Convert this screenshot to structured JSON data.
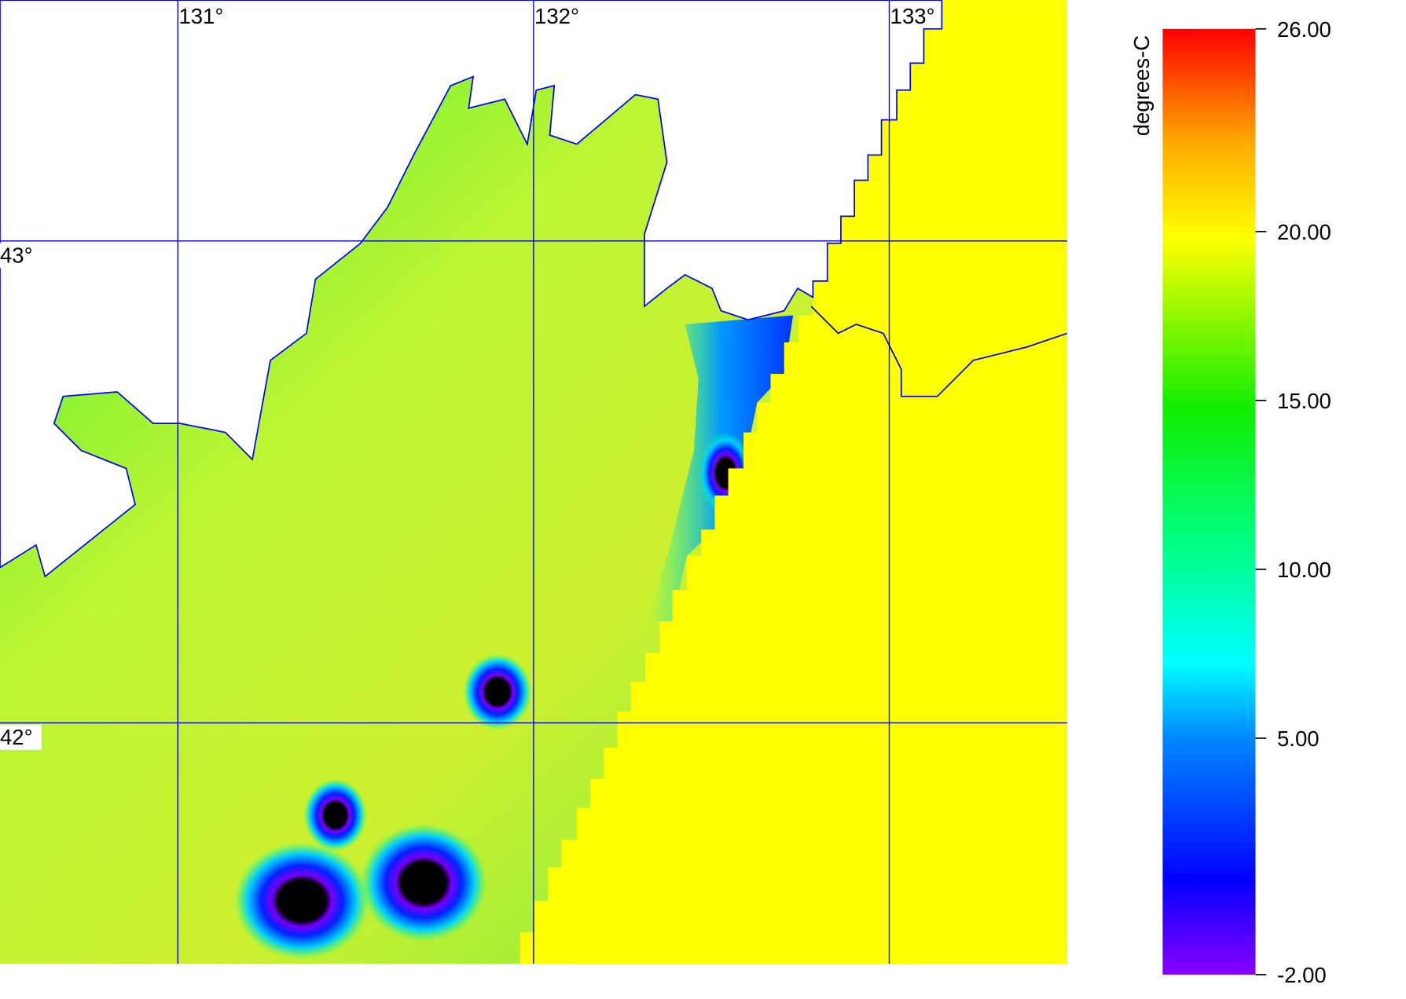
{
  "map": {
    "unit_label": "degrees-C",
    "xlim": [
      130.5,
      133.5
    ],
    "ylim": [
      41.5,
      43.5
    ],
    "xticks": [
      {
        "value": 131,
        "label": "131°"
      },
      {
        "value": 132,
        "label": "132°"
      },
      {
        "value": 133,
        "label": "133°"
      }
    ],
    "yticks": [
      {
        "value": 43,
        "label": "43°"
      },
      {
        "value": 42,
        "label": "42°"
      }
    ],
    "colorbar": {
      "lim": [
        -2,
        26
      ],
      "ticks": [
        {
          "value": 26,
          "label": "26.00"
        },
        {
          "value": 20,
          "label": "20.00"
        },
        {
          "value": 15,
          "label": "15.00"
        },
        {
          "value": 10,
          "label": "10.00"
        },
        {
          "value": 5,
          "label": "5.00"
        },
        {
          "value": -2,
          "label": "-2.00"
        }
      ]
    }
  }
}
